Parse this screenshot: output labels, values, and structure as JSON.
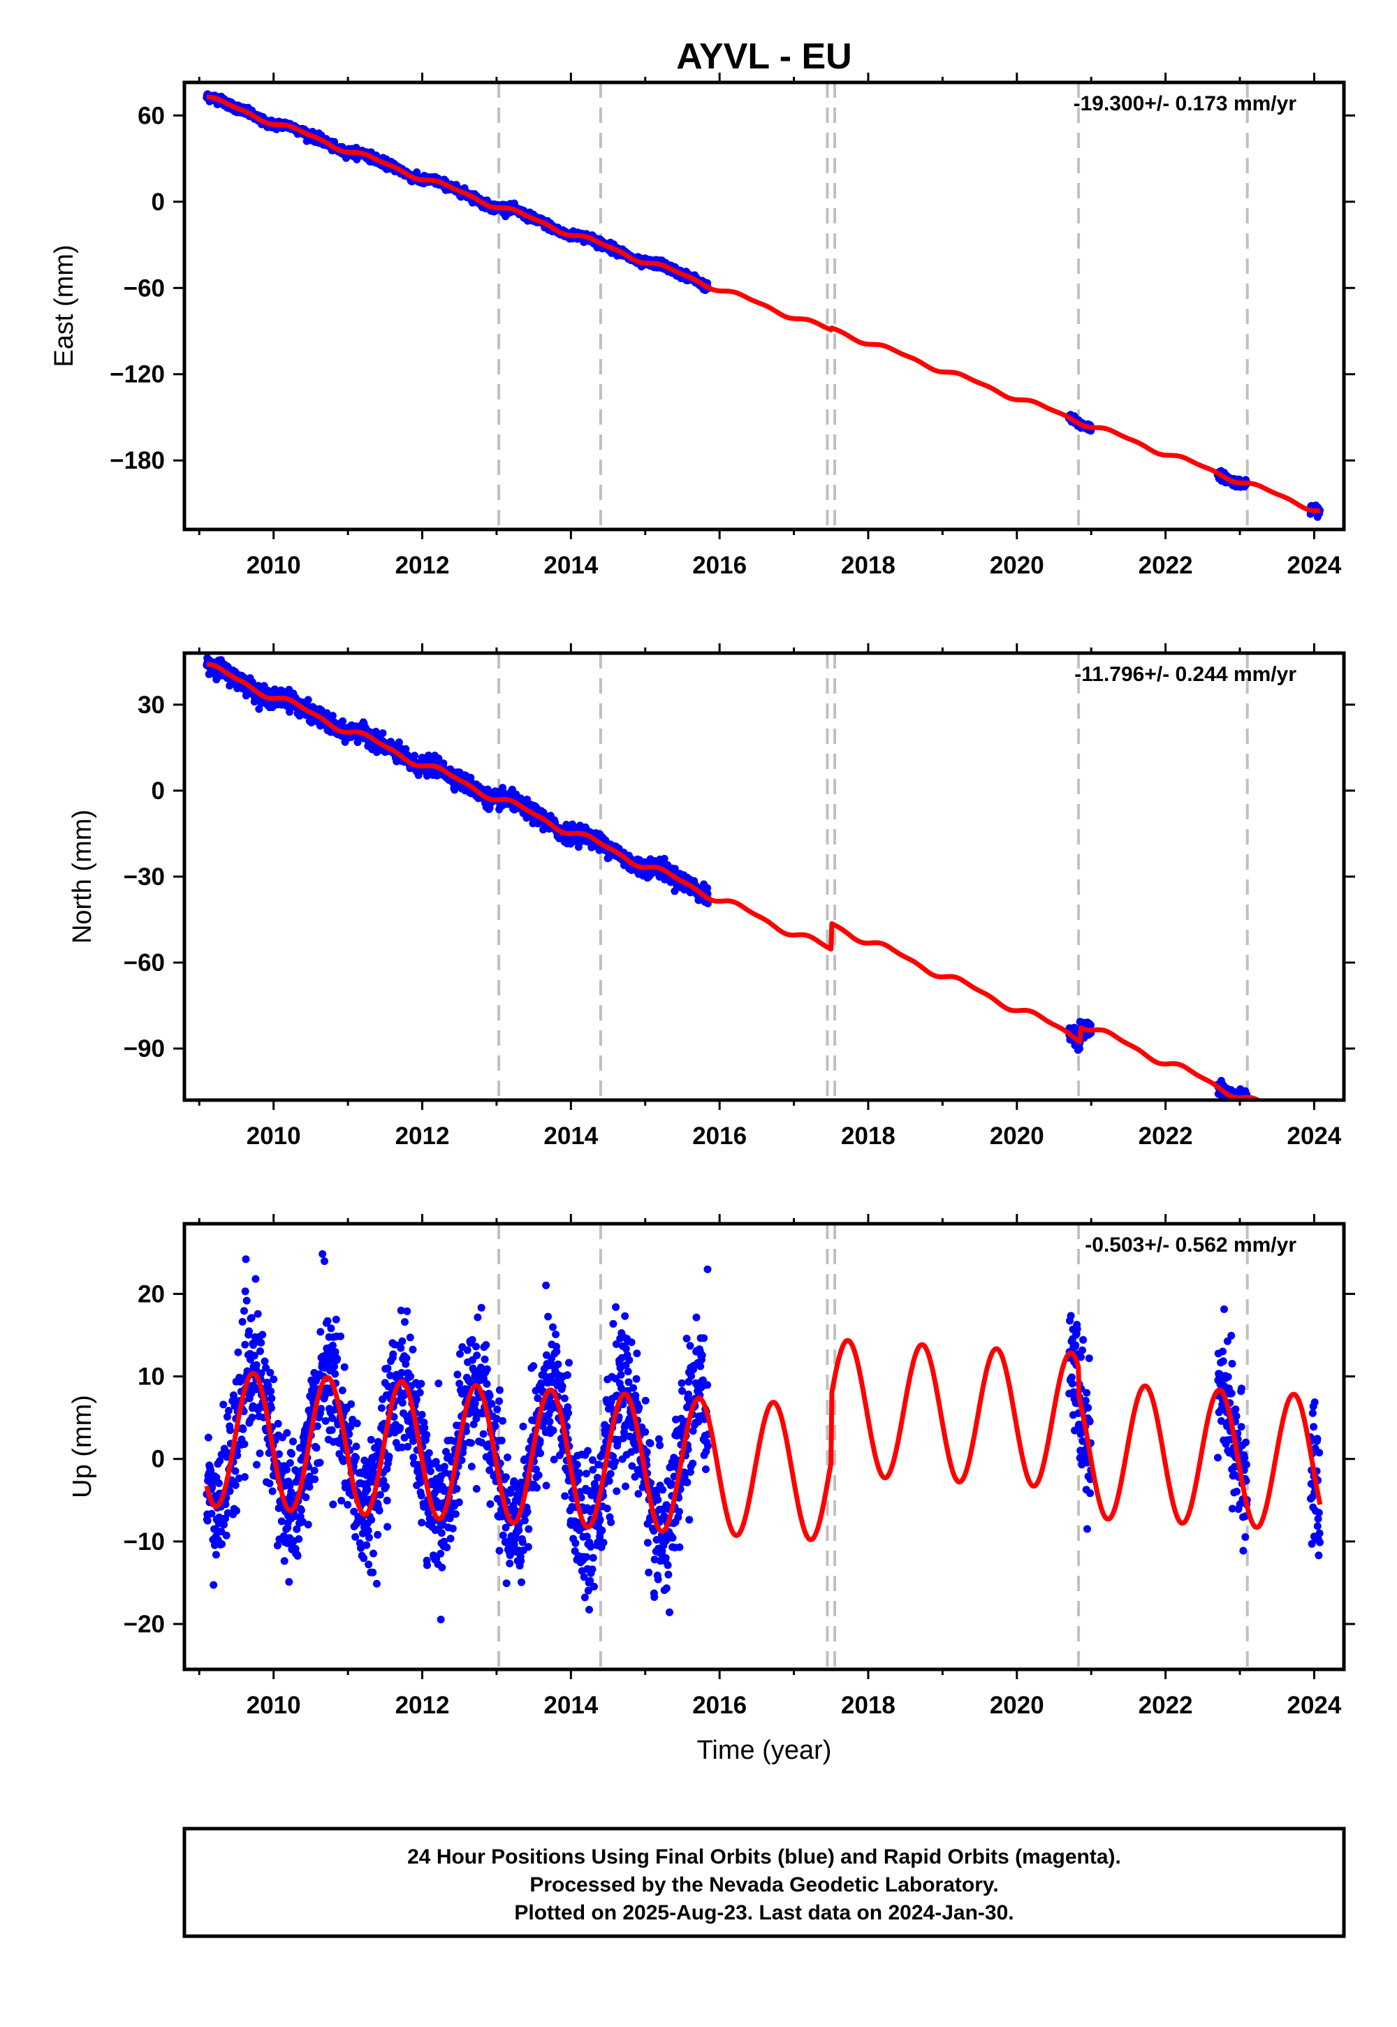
{
  "title": "AYVL - EU",
  "colors": {
    "data": "#0000ff",
    "model": "#ff0000",
    "breaks": "#c0c0c0",
    "frame": "#000000"
  },
  "footer": {
    "lines": [
      "24 Hour Positions Using Final Orbits (blue) and Rapid Orbits (magenta).",
      "Processed by the Nevada Geodetic Laboratory.",
      "Plotted on 2025-Aug-23. Last data on 2024-Jan-30."
    ]
  },
  "chart_data": [
    {
      "type": "scatter",
      "name": "east",
      "ylabel": "East (mm)",
      "xlabel": "",
      "rate_label": "-19.300+/- 0.173 mm/yr",
      "xlim": [
        2008.8,
        2024.4
      ],
      "ylim": [
        -228,
        83
      ],
      "xticks": [
        2010,
        2012,
        2014,
        2016,
        2018,
        2020,
        2022,
        2024
      ],
      "yticks": [
        60,
        0,
        -60,
        -120,
        -180
      ],
      "ytick_labels": [
        "60",
        "0",
        "−60",
        "−120",
        "−180"
      ],
      "breaks": [
        2013.03,
        2014.4,
        2017.45,
        2017.55,
        2020.83,
        2023.1
      ],
      "data_segments": [
        [
          2009.1,
          2015.85
        ],
        [
          2020.7,
          2021.0
        ],
        [
          2022.7,
          2023.1
        ],
        [
          2023.95,
          2024.08
        ]
      ],
      "model": {
        "t0": 2009.1,
        "y0": 72.5,
        "rate": -19.3,
        "annual_amp": 1.6,
        "annual_phase": 0.0,
        "semiannual_amp": 0.7,
        "semiannual_phase": 0.6,
        "offsets": [
          [
            2017.5,
            1.5
          ]
        ]
      },
      "noise": 1.8
    },
    {
      "type": "scatter",
      "name": "north",
      "ylabel": "North (mm)",
      "xlabel": "",
      "rate_label": "-11.796+/- 0.244 mm/yr",
      "xlim": [
        2008.8,
        2024.4
      ],
      "ylim": [
        -108,
        48
      ],
      "xticks": [
        2010,
        2012,
        2014,
        2016,
        2018,
        2020,
        2022,
        2024
      ],
      "yticks": [
        30,
        0,
        -30,
        -60,
        -90
      ],
      "ytick_labels": [
        "30",
        "0",
        "−30",
        "−60",
        "−90"
      ],
      "breaks": [
        2013.03,
        2014.4,
        2017.45,
        2017.55,
        2020.83,
        2023.1
      ],
      "data_segments": [
        [
          2009.1,
          2015.85
        ],
        [
          2020.7,
          2021.0
        ],
        [
          2022.7,
          2023.1
        ],
        [
          2023.95,
          2024.08
        ]
      ],
      "model": {
        "t0": 2009.1,
        "y0": 43.5,
        "rate": -11.796,
        "annual_amp": 1.2,
        "annual_phase": 0.2,
        "semiannual_amp": 0.5,
        "semiannual_phase": 0.8,
        "offsets": [
          [
            2017.5,
            9.0
          ],
          [
            2020.85,
            5.0
          ]
        ]
      },
      "noise": 1.8
    },
    {
      "type": "scatter",
      "name": "up",
      "ylabel": "Up (mm)",
      "xlabel": "Time (year)",
      "rate_label": "-0.503+/- 0.562 mm/yr",
      "xlim": [
        2008.8,
        2024.4
      ],
      "ylim": [
        -25.5,
        28.5
      ],
      "xticks": [
        2010,
        2012,
        2014,
        2016,
        2018,
        2020,
        2022,
        2024
      ],
      "yticks": [
        20,
        10,
        0,
        -10,
        -20
      ],
      "ytick_labels": [
        "20",
        "10",
        "0",
        "−10",
        "−20"
      ],
      "breaks": [
        2013.03,
        2014.4,
        2017.45,
        2017.55,
        2020.83,
        2023.1
      ],
      "data_segments": [
        [
          2009.1,
          2015.85
        ],
        [
          2020.7,
          2021.0
        ],
        [
          2022.7,
          2023.1
        ],
        [
          2023.95,
          2024.08
        ]
      ],
      "model": {
        "t0": 2009.1,
        "y0": 2.5,
        "rate": -0.503,
        "annual_amp": 8.2,
        "annual_phase": -2.36,
        "semiannual_amp": 0.0,
        "semiannual_phase": 0.0,
        "offsets": [
          [
            2017.5,
            8.0
          ],
          [
            2020.83,
            -3.5
          ]
        ]
      },
      "noise": 5.0
    }
  ]
}
